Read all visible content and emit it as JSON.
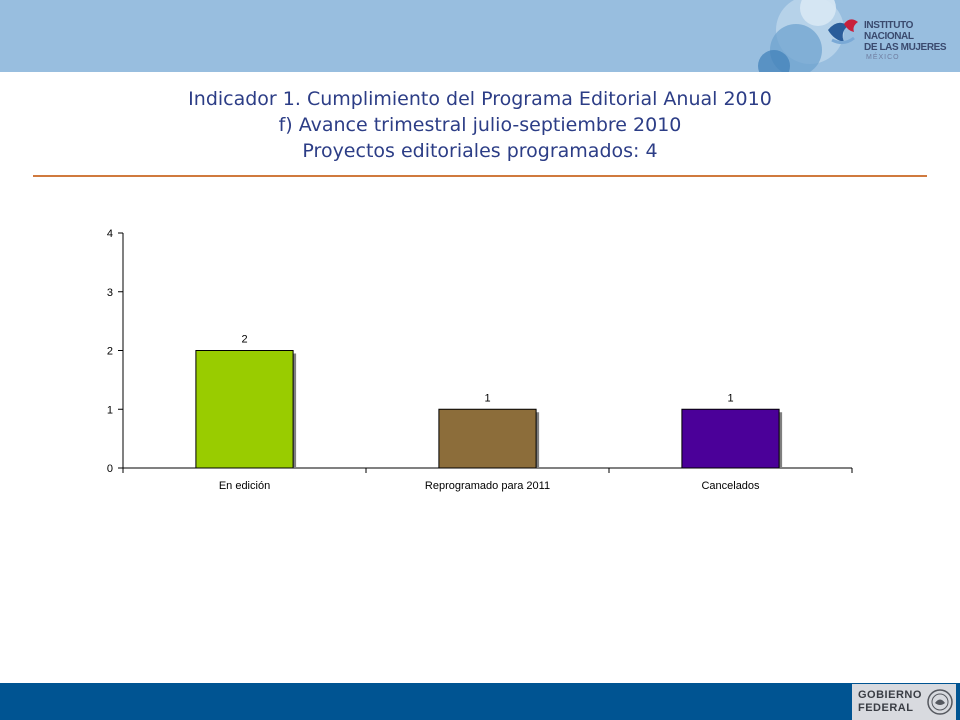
{
  "header": {
    "logo": {
      "line1": "INSTITUTO NACIONAL",
      "line2": "DE LAS MUJERES",
      "line3": "MÉXICO"
    }
  },
  "title": {
    "line1": "Indicador 1. Cumplimiento del Programa Editorial Anual 2010",
    "line2": "f) Avance trimestral julio-septiembre 2010",
    "line3": "Proyectos editoriales programados: 4"
  },
  "footer": {
    "line1": "GOBIERNO",
    "line2": "FEDERAL"
  },
  "colors": {
    "header_band": "#98bedf",
    "title_text": "#2c3d86",
    "rule": "#d07a3e",
    "footer_band": "#005492"
  },
  "chart_data": {
    "type": "bar",
    "categories": [
      "En edición",
      "Reprogramado para 2011",
      "Cancelados"
    ],
    "values": [
      2,
      1,
      1
    ],
    "data_labels": [
      "2",
      "1",
      "1"
    ],
    "bar_colors": [
      "#99cc00",
      "#8c6d3a",
      "#4b0099"
    ],
    "ylim": [
      0,
      4
    ],
    "yticks": [
      "0",
      "1",
      "2",
      "3",
      "4"
    ],
    "grid": false,
    "legend": "none"
  }
}
